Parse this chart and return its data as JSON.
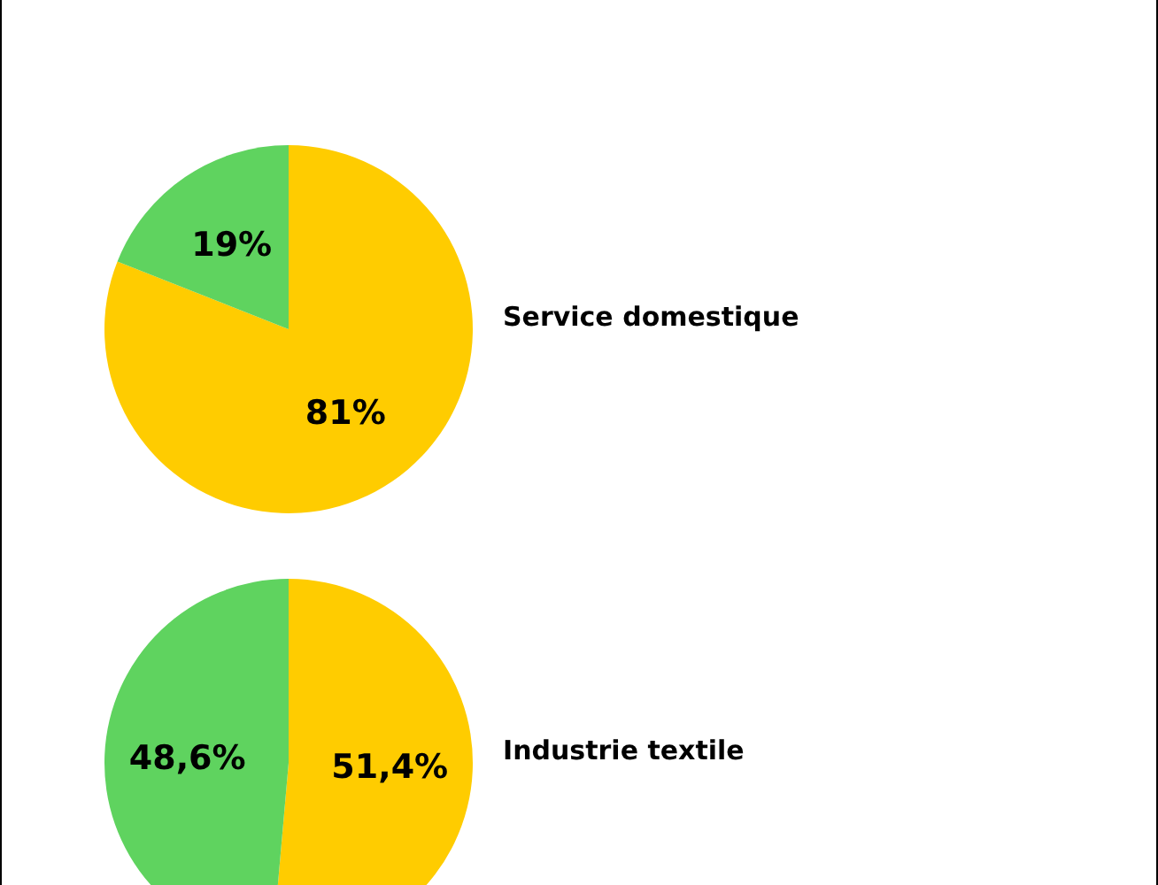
{
  "chart_data": [
    {
      "type": "pie",
      "title": "Service domestique",
      "categories": [
        null,
        null
      ],
      "values": [
        81,
        19
      ],
      "colors": [
        "#ffcc00",
        "#5fd35f"
      ],
      "value_labels": [
        "81%",
        "19%"
      ]
    },
    {
      "type": "pie",
      "title": "Industrie textile",
      "categories": [
        null,
        null
      ],
      "values": [
        51.4,
        48.6
      ],
      "colors": [
        "#ffcc00",
        "#5fd35f"
      ],
      "value_labels": [
        "51,4%",
        "48,6%"
      ]
    }
  ]
}
